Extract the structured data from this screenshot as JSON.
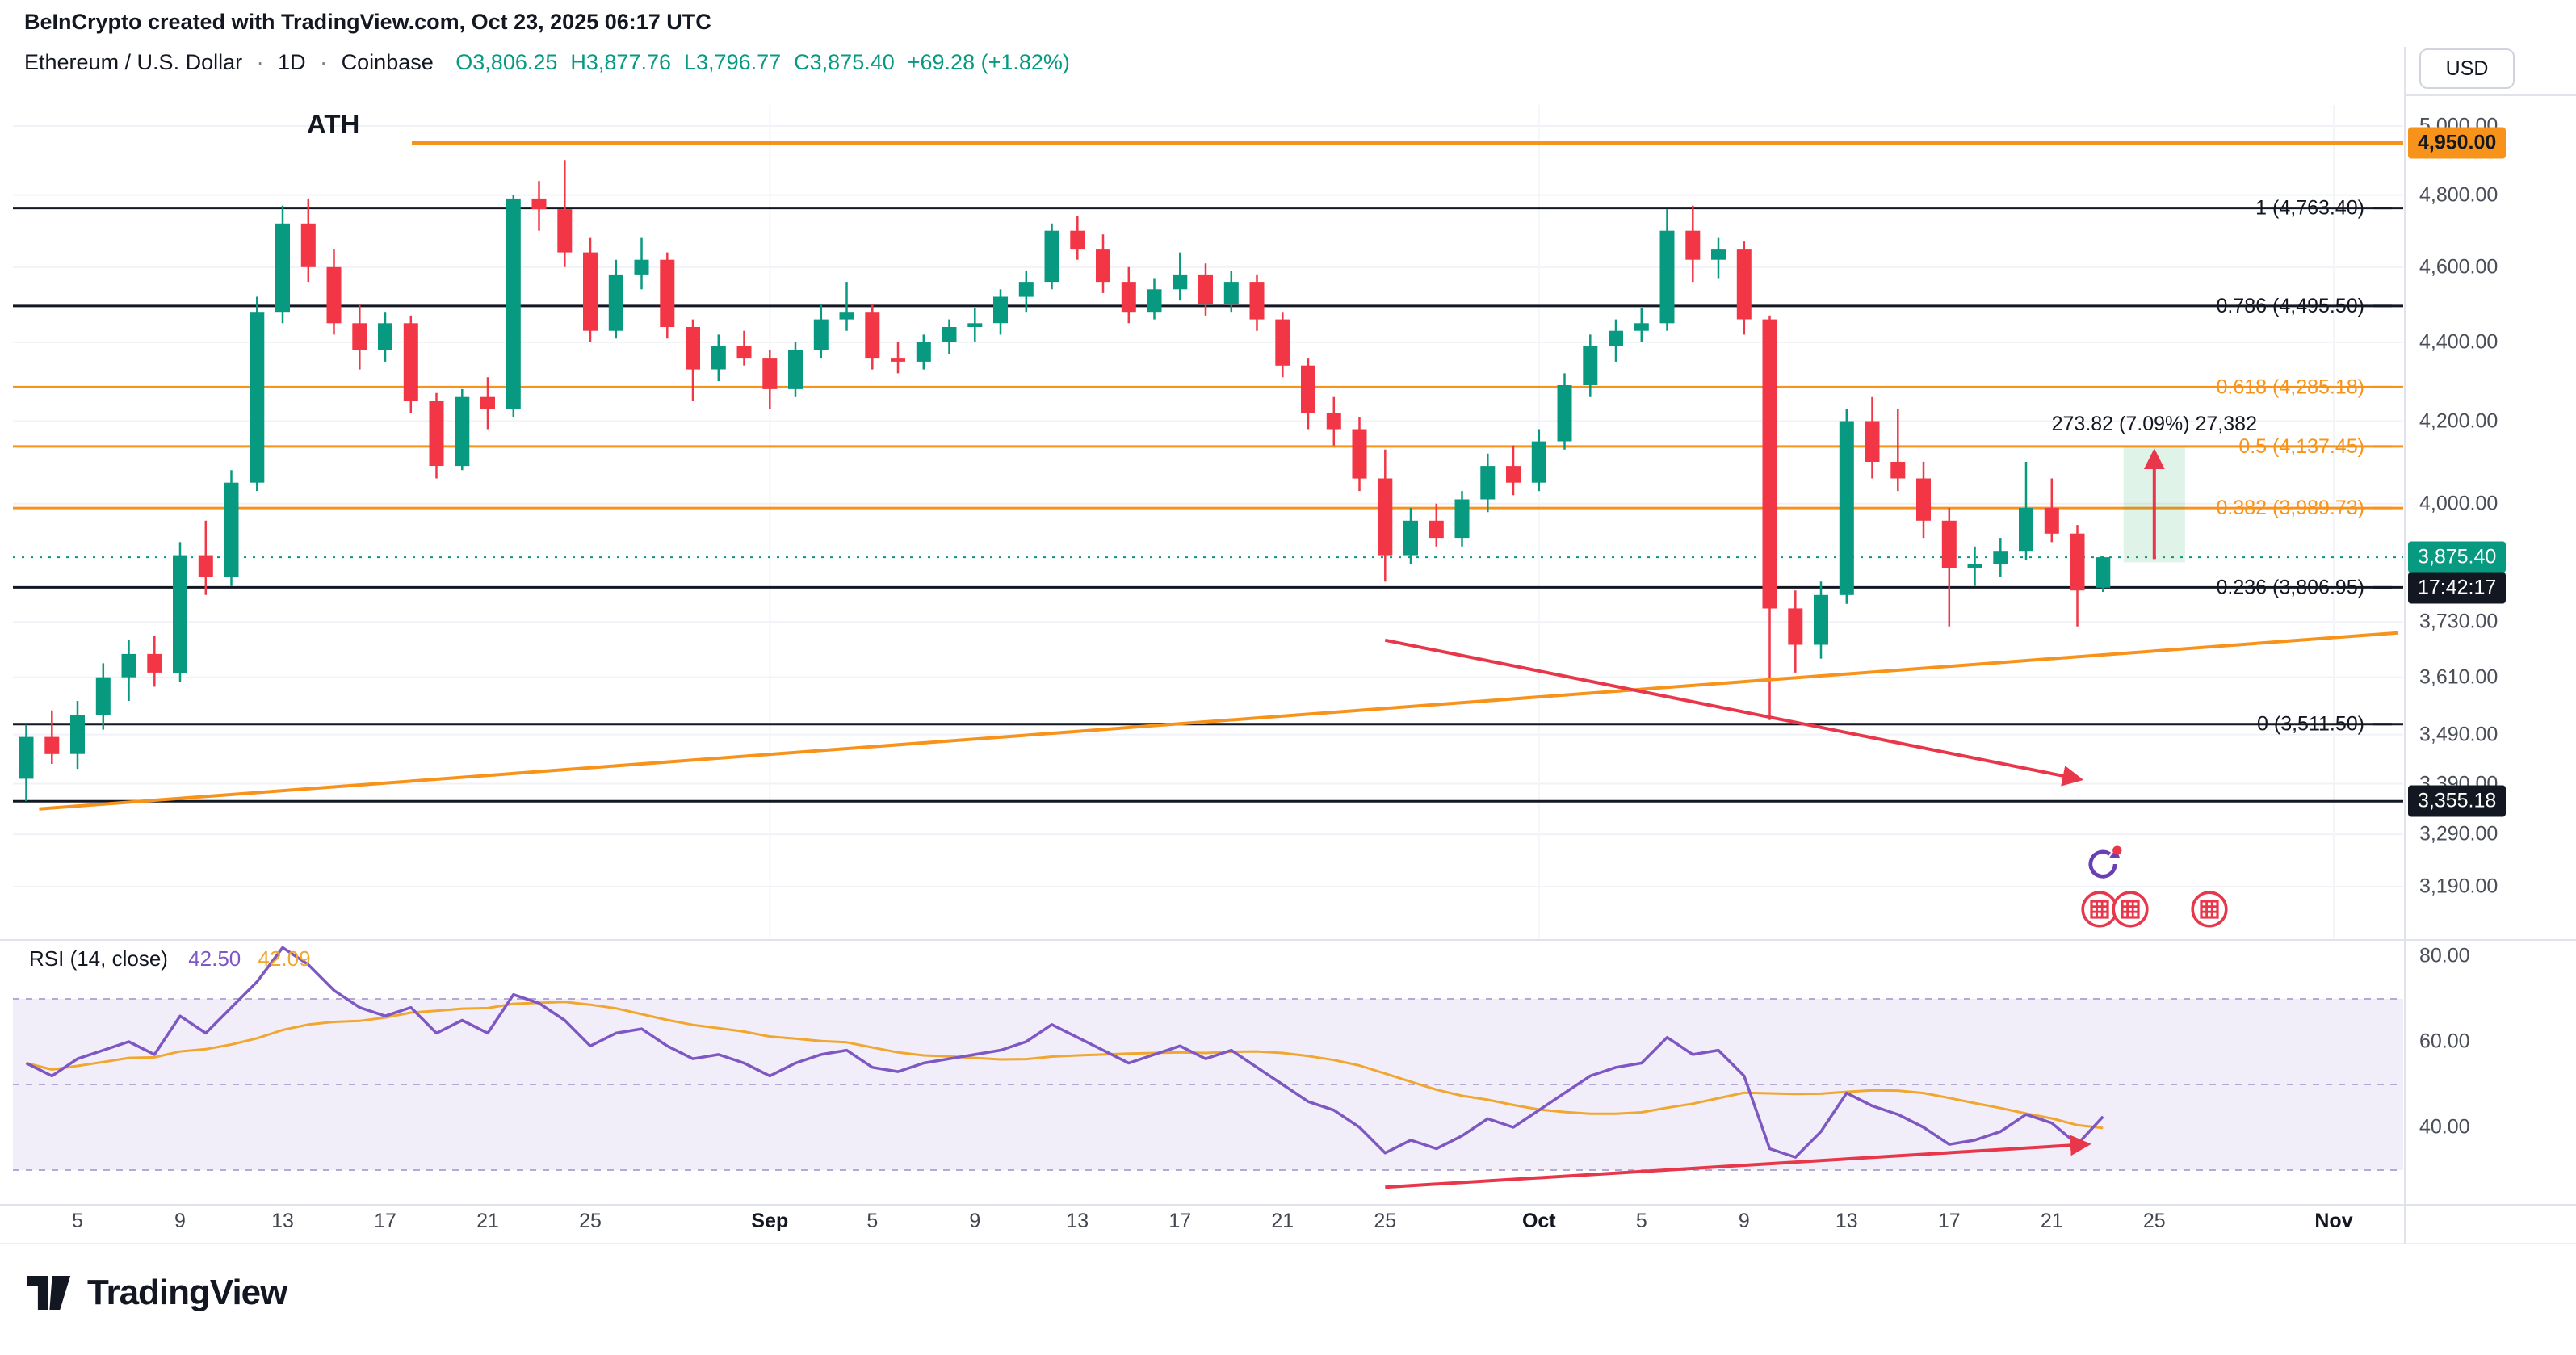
{
  "header": {
    "watermark": "BeInCrypto created with TradingView.com, Oct 23, 2025 06:17 UTC",
    "symbol": "Ethereum / U.S. Dollar",
    "separator": "·",
    "interval": "1D",
    "exchange": "Coinbase",
    "ohlc": {
      "o_label": "O",
      "o": "3,806.25",
      "h_label": "H",
      "h": "3,877.76",
      "l_label": "L",
      "l": "3,796.77",
      "c_label": "C",
      "c": "3,875.40",
      "change": "+69.28 (+1.82%)"
    },
    "currency_button": "USD"
  },
  "price_axis": {
    "labels": [
      "5,000.00",
      "4,800.00",
      "4,600.00",
      "4,400.00",
      "4,200.00",
      "4,000.00",
      "3,730.00",
      "3,610.00",
      "3,490.00",
      "3,390.00",
      "3,290.00",
      "3,190.00"
    ],
    "values": [
      5000,
      4800,
      4600,
      4400,
      4200,
      4000,
      3730,
      3610,
      3490,
      3390,
      3290,
      3190
    ],
    "ath_tag": {
      "label": "4,950.00",
      "value": 4950
    },
    "last_tag": {
      "label": "3,875.40",
      "value": 3875.4,
      "countdown": "17:42:17"
    },
    "low_tag": {
      "label": "3,355.18",
      "value": 3355.18
    }
  },
  "chart_data": {
    "type": "candlestick",
    "title": "Ethereum / U.S. Dollar · 1D · Coinbase",
    "price_scale": "log",
    "y_range": [
      3190,
      5000
    ],
    "start_date": "2025-08-03",
    "end_date": "2025-10-23",
    "up_color": "#089981",
    "down_color": "#f23645",
    "candles": [
      [
        3400,
        3510,
        3355,
        3485
      ],
      [
        3485,
        3540,
        3430,
        3450
      ],
      [
        3450,
        3560,
        3420,
        3530
      ],
      [
        3530,
        3640,
        3500,
        3610
      ],
      [
        3610,
        3690,
        3560,
        3660
      ],
      [
        3660,
        3700,
        3590,
        3620
      ],
      [
        3620,
        3910,
        3600,
        3880
      ],
      [
        3880,
        3960,
        3790,
        3830
      ],
      [
        3830,
        4080,
        3810,
        4050
      ],
      [
        4050,
        4520,
        4030,
        4480
      ],
      [
        4480,
        4770,
        4450,
        4720
      ],
      [
        4720,
        4790,
        4560,
        4600
      ],
      [
        4600,
        4650,
        4420,
        4450
      ],
      [
        4450,
        4500,
        4330,
        4380
      ],
      [
        4380,
        4480,
        4350,
        4450
      ],
      [
        4450,
        4470,
        4220,
        4250
      ],
      [
        4250,
        4270,
        4060,
        4090
      ],
      [
        4090,
        4280,
        4080,
        4260
      ],
      [
        4260,
        4310,
        4180,
        4230
      ],
      [
        4230,
        4800,
        4210,
        4790
      ],
      [
        4790,
        4840,
        4700,
        4760
      ],
      [
        4760,
        4900,
        4600,
        4640
      ],
      [
        4640,
        4680,
        4400,
        4430
      ],
      [
        4430,
        4620,
        4410,
        4580
      ],
      [
        4580,
        4680,
        4540,
        4620
      ],
      [
        4620,
        4640,
        4410,
        4440
      ],
      [
        4440,
        4460,
        4250,
        4330
      ],
      [
        4330,
        4420,
        4300,
        4390
      ],
      [
        4390,
        4430,
        4340,
        4360
      ],
      [
        4360,
        4380,
        4230,
        4280
      ],
      [
        4280,
        4400,
        4260,
        4380
      ],
      [
        4380,
        4500,
        4360,
        4460
      ],
      [
        4460,
        4560,
        4430,
        4480
      ],
      [
        4480,
        4500,
        4330,
        4360
      ],
      [
        4360,
        4400,
        4320,
        4350
      ],
      [
        4350,
        4420,
        4330,
        4400
      ],
      [
        4400,
        4460,
        4370,
        4440
      ],
      [
        4440,
        4490,
        4400,
        4450
      ],
      [
        4450,
        4540,
        4420,
        4520
      ],
      [
        4520,
        4590,
        4480,
        4560
      ],
      [
        4560,
        4720,
        4540,
        4700
      ],
      [
        4700,
        4740,
        4620,
        4650
      ],
      [
        4650,
        4690,
        4530,
        4560
      ],
      [
        4560,
        4600,
        4450,
        4480
      ],
      [
        4480,
        4570,
        4460,
        4540
      ],
      [
        4540,
        4640,
        4510,
        4580
      ],
      [
        4580,
        4610,
        4470,
        4500
      ],
      [
        4500,
        4590,
        4480,
        4560
      ],
      [
        4560,
        4580,
        4430,
        4460
      ],
      [
        4460,
        4480,
        4310,
        4340
      ],
      [
        4340,
        4360,
        4180,
        4220
      ],
      [
        4220,
        4260,
        4140,
        4180
      ],
      [
        4180,
        4210,
        4030,
        4060
      ],
      [
        4060,
        4130,
        3820,
        3880
      ],
      [
        3880,
        3990,
        3860,
        3960
      ],
      [
        3960,
        4000,
        3900,
        3920
      ],
      [
        3920,
        4030,
        3900,
        4010
      ],
      [
        4010,
        4120,
        3980,
        4090
      ],
      [
        4090,
        4140,
        4020,
        4050
      ],
      [
        4050,
        4180,
        4030,
        4150
      ],
      [
        4150,
        4320,
        4130,
        4290
      ],
      [
        4290,
        4420,
        4260,
        4390
      ],
      [
        4390,
        4460,
        4350,
        4430
      ],
      [
        4430,
        4490,
        4400,
        4450
      ],
      [
        4450,
        4760,
        4430,
        4700
      ],
      [
        4700,
        4770,
        4560,
        4620
      ],
      [
        4620,
        4680,
        4570,
        4650
      ],
      [
        4650,
        4670,
        4420,
        4460
      ],
      [
        4460,
        4470,
        3520,
        3760
      ],
      [
        3760,
        3800,
        3620,
        3680
      ],
      [
        3680,
        3820,
        3650,
        3790
      ],
      [
        3790,
        4230,
        3770,
        4200
      ],
      [
        4200,
        4260,
        4060,
        4100
      ],
      [
        4100,
        4230,
        4030,
        4060
      ],
      [
        4060,
        4100,
        3920,
        3960
      ],
      [
        3960,
        3990,
        3720,
        3850
      ],
      [
        3850,
        3900,
        3810,
        3860
      ],
      [
        3860,
        3920,
        3830,
        3890
      ],
      [
        3890,
        4100,
        3870,
        3990
      ],
      [
        3990,
        4060,
        3910,
        3930
      ],
      [
        3930,
        3950,
        3720,
        3800
      ],
      [
        3806.25,
        3877.76,
        3796.77,
        3875.4
      ]
    ],
    "fib_levels": [
      {
        "label": "ATH",
        "price": 4950,
        "color": "#f7931a",
        "style": "ath"
      },
      {
        "label": "1 (4,763.40)",
        "price": 4763.4,
        "color": "#131722"
      },
      {
        "label": "0.786 (4,495.50)",
        "price": 4495.5,
        "color": "#131722"
      },
      {
        "label": "0.618 (4,285.18)",
        "price": 4285.18,
        "color": "#f7931a"
      },
      {
        "label": "0.5 (4,137.45)",
        "price": 4137.45,
        "color": "#f7931a"
      },
      {
        "label": "0.382 (3,989.73)",
        "price": 3989.73,
        "color": "#f7931a"
      },
      {
        "label": "0.236 (3,806.95)",
        "price": 3806.95,
        "color": "#131722"
      },
      {
        "label": "0 (3,511.50)",
        "price": 3511.5,
        "color": "#131722"
      },
      {
        "label": "",
        "price": 3355.18,
        "color": "#131722"
      }
    ],
    "last_price_line": 3875.4,
    "trendlines": [
      {
        "name": "support-trendline",
        "color": "#f7931a",
        "width": 4,
        "arrow": false,
        "from": {
          "index": 0.5,
          "price": 3340
        },
        "to": {
          "index": 92.5,
          "price": 3706
        }
      },
      {
        "name": "bearish-arrow",
        "color": "#e8374b",
        "width": 4,
        "arrow": true,
        "from": {
          "index": 53,
          "price": 3690
        },
        "to": {
          "index": 80,
          "price": 3400
        }
      }
    ],
    "measurement": {
      "text": "273.82 (7.09%) 27,382",
      "from_price": 3863.63,
      "to_price": 4137.45,
      "from_index": 81.8,
      "to_index": 84.2,
      "fill": "rgba(34,171,94,0.14)",
      "arrow_color": "#e8374b"
    },
    "rsi_panel": {
      "title": "RSI (14, close)",
      "value": "42.50",
      "value_color": "#7e57c2",
      "ma_value": "42.09",
      "ma_color": "#f0a62f",
      "line_color": "#7e57c2",
      "band_fill": "rgba(126,87,194,0.10)",
      "levels": [
        70,
        50,
        30
      ],
      "axis_labels": [
        {
          "label": "80.00",
          "value": 80
        },
        {
          "label": "60.00",
          "value": 60
        },
        {
          "label": "40.00",
          "value": 40
        }
      ],
      "ma_period": 14,
      "values": [
        55,
        52,
        56,
        58,
        60,
        57,
        66,
        62,
        68,
        74,
        82,
        78,
        72,
        68,
        66,
        68,
        62,
        65,
        62,
        71,
        69,
        65,
        59,
        62,
        63,
        59,
        56,
        57,
        55,
        52,
        55,
        57,
        58,
        54,
        53,
        55,
        56,
        57,
        58,
        60,
        64,
        61,
        58,
        55,
        57,
        59,
        56,
        58,
        54,
        50,
        46,
        44,
        40,
        34,
        37,
        35,
        38,
        42,
        40,
        44,
        48,
        52,
        54,
        55,
        61,
        57,
        58,
        52,
        35,
        33,
        39,
        48,
        45,
        43,
        40,
        36,
        37,
        39,
        43,
        41,
        36,
        42.5
      ],
      "arrow": {
        "color": "#e8374b",
        "from": {
          "index": 53,
          "value": 26
        },
        "to": {
          "index": 80.3,
          "value": 36
        }
      }
    }
  },
  "time_axis": {
    "ticks": [
      {
        "label": "5",
        "index": 2
      },
      {
        "label": "9",
        "index": 6
      },
      {
        "label": "13",
        "index": 10
      },
      {
        "label": "17",
        "index": 14
      },
      {
        "label": "21",
        "index": 18
      },
      {
        "label": "25",
        "index": 22
      },
      {
        "label": "Sep",
        "index": 29,
        "bold": true
      },
      {
        "label": "5",
        "index": 33
      },
      {
        "label": "9",
        "index": 37
      },
      {
        "label": "13",
        "index": 41
      },
      {
        "label": "17",
        "index": 45
      },
      {
        "label": "21",
        "index": 49
      },
      {
        "label": "25",
        "index": 53
      },
      {
        "label": "Oct",
        "index": 59,
        "bold": true
      },
      {
        "label": "5",
        "index": 63
      },
      {
        "label": "9",
        "index": 67
      },
      {
        "label": "13",
        "index": 71
      },
      {
        "label": "17",
        "index": 75
      },
      {
        "label": "21",
        "index": 79
      },
      {
        "label": "25",
        "index": 83
      },
      {
        "label": "Nov",
        "index": 90,
        "bold": true
      }
    ]
  },
  "footer": {
    "brand": "TradingView"
  }
}
